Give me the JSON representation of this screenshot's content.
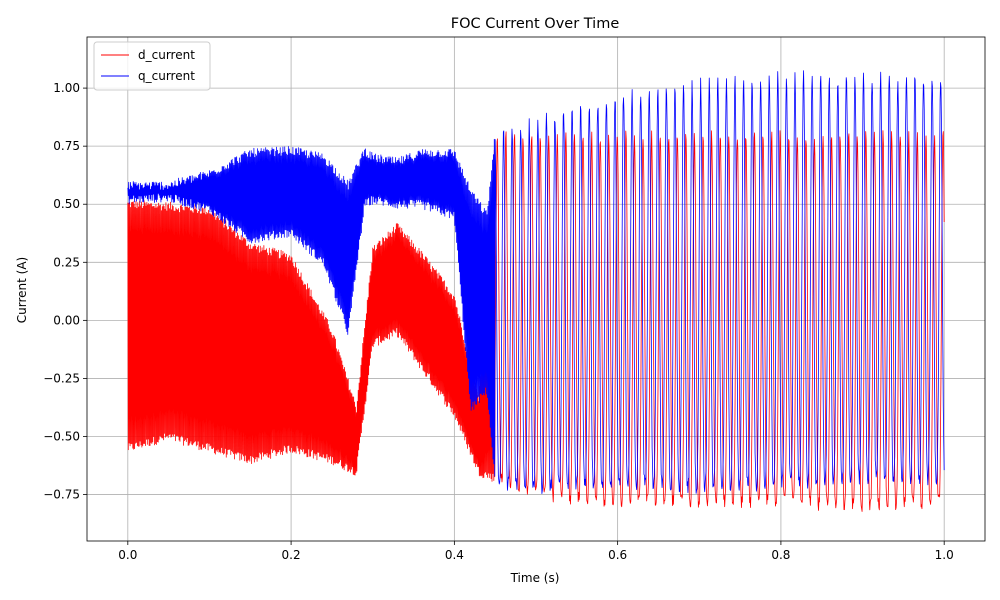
{
  "chart_data": {
    "type": "line",
    "title": "FOC Current Over Time",
    "xlabel": "Time (s)",
    "ylabel": "Current (A)",
    "xlim": [
      -0.05,
      1.05
    ],
    "ylim": [
      -0.95,
      1.22
    ],
    "xticks": [
      0.0,
      0.2,
      0.4,
      0.6,
      0.8,
      1.0
    ],
    "xtick_labels": [
      "0.0",
      "0.2",
      "0.4",
      "0.6",
      "0.8",
      "1.0"
    ],
    "yticks": [
      -0.75,
      -0.5,
      -0.25,
      0.0,
      0.25,
      0.5,
      0.75,
      1.0
    ],
    "ytick_labels": [
      "−0.75",
      "−0.50",
      "−0.25",
      "0.00",
      "0.25",
      "0.50",
      "0.75",
      "1.00"
    ],
    "grid": true,
    "legend_position": "top-left",
    "series": [
      {
        "name": "d_current",
        "color": "#ff0000",
        "envelope": {
          "x": [
            0.0,
            0.05,
            0.1,
            0.15,
            0.2,
            0.25,
            0.28,
            0.3,
            0.33,
            0.36,
            0.4,
            0.43,
            0.45,
            0.5,
            0.6,
            0.7,
            0.8,
            0.9,
            1.0
          ],
          "upper": [
            0.5,
            0.49,
            0.47,
            0.32,
            0.27,
            -0.05,
            -0.38,
            0.3,
            0.4,
            0.28,
            0.1,
            -0.35,
            0.8,
            0.8,
            0.8,
            0.8,
            0.8,
            0.8,
            0.8
          ],
          "lower": [
            -0.55,
            -0.5,
            -0.55,
            -0.6,
            -0.55,
            -0.6,
            -0.65,
            -0.1,
            -0.05,
            -0.2,
            -0.4,
            -0.65,
            -0.68,
            -0.75,
            -0.78,
            -0.78,
            -0.78,
            -0.8,
            -0.78
          ]
        },
        "oscillation_start": 0.45,
        "cycle_period": 0.0105
      },
      {
        "name": "q_current",
        "color": "#0000ff",
        "envelope": {
          "x": [
            0.0,
            0.05,
            0.1,
            0.15,
            0.2,
            0.24,
            0.27,
            0.29,
            0.3,
            0.33,
            0.36,
            0.4,
            0.42,
            0.44,
            0.45,
            0.5,
            0.6,
            0.7,
            0.8,
            0.9,
            1.0
          ],
          "upper": [
            0.58,
            0.58,
            0.63,
            0.72,
            0.73,
            0.7,
            0.58,
            0.73,
            0.7,
            0.68,
            0.72,
            0.72,
            0.55,
            0.45,
            0.8,
            0.85,
            0.97,
            1.02,
            1.05,
            1.05,
            1.05
          ],
          "lower": [
            0.52,
            0.53,
            0.48,
            0.35,
            0.38,
            0.25,
            -0.05,
            0.5,
            0.52,
            0.5,
            0.5,
            0.45,
            -0.38,
            -0.3,
            -0.7,
            -0.72,
            -0.7,
            -0.72,
            -0.7,
            -0.68,
            -0.68
          ]
        },
        "oscillation_start": 0.45,
        "cycle_period": 0.0105
      }
    ]
  }
}
